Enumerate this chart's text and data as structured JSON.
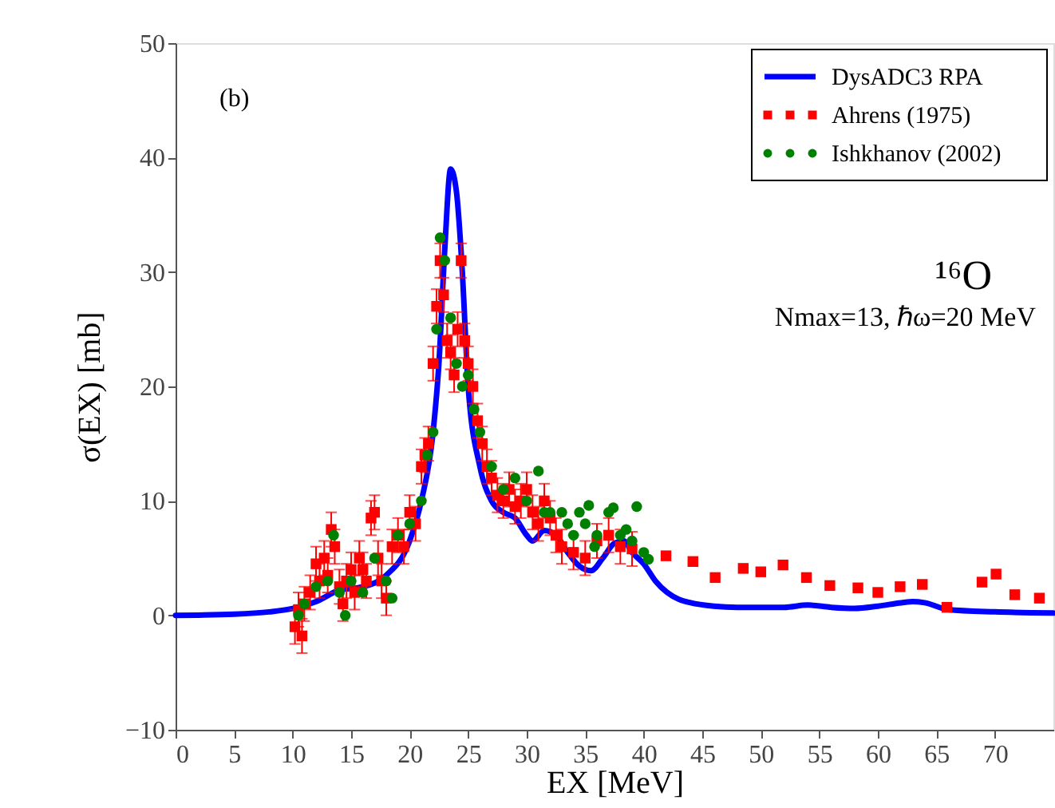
{
  "chart_data": {
    "type": "scatter",
    "xlabel": "EX [MeV]",
    "ylabel": "σ(EX) [mb]",
    "annotations": [
      "(b)",
      "¹⁶O",
      "Nmax=13, ℏω=20 MeV"
    ],
    "xlim": [
      0,
      75
    ],
    "xticks": [
      0,
      5,
      10,
      15,
      20,
      25,
      30,
      35,
      40,
      45,
      50,
      55,
      60,
      65,
      70
    ],
    "ylim": [
      -10,
      50
    ],
    "yticks": [
      -10,
      0,
      10,
      20,
      30,
      40,
      50
    ],
    "grid": false,
    "legend": "top right",
    "series": [
      {
        "name": "DysADC3 RPA",
        "type": "line",
        "color": "#0000ff",
        "line_style": "solid",
        "marker": "none",
        "x": [
          0,
          5,
          8,
          10,
          12,
          14,
          16,
          18,
          20,
          21,
          22,
          22.5,
          23,
          23.5,
          24,
          24.5,
          25,
          26,
          27,
          28,
          29,
          30,
          30.5,
          31.5,
          32.5,
          33.5,
          34.5,
          35.5,
          36.5,
          37.5,
          38.3,
          39,
          40,
          41,
          42,
          43,
          44,
          46,
          48,
          50,
          52,
          54,
          56,
          58,
          60,
          62,
          63,
          64,
          66,
          70,
          75
        ],
        "values": [
          0,
          0.1,
          0.3,
          0.6,
          1.2,
          2.2,
          2.5,
          3.5,
          6.5,
          10,
          16,
          22,
          32,
          39,
          37,
          30,
          20,
          13,
          10,
          9,
          8.5,
          7,
          6.5,
          7.4,
          7,
          5.5,
          4.3,
          3.9,
          5,
          6.3,
          6.5,
          5.5,
          4.5,
          3,
          2,
          1.4,
          1.1,
          0.8,
          0.7,
          0.7,
          0.7,
          0.9,
          0.7,
          0.6,
          0.8,
          1.1,
          1.2,
          1.1,
          0.5,
          0.3,
          0.2
        ]
      },
      {
        "name": "Ahrens (1975)",
        "color": "#ff0000",
        "marker": "square",
        "x": [
          10.2,
          10.5,
          10.8,
          11,
          11.5,
          12,
          12.3,
          12.7,
          13,
          13.3,
          13.6,
          14,
          14.3,
          14.6,
          15,
          15.3,
          15.7,
          16,
          16.3,
          16.7,
          17,
          17.3,
          17.6,
          18,
          18.5,
          19,
          19.5,
          20,
          20.5,
          21,
          21.3,
          21.6,
          22,
          22.3,
          22.6,
          22.9,
          23.2,
          23.5,
          23.8,
          24.1,
          24.4,
          24.7,
          25,
          25.4,
          25.8,
          26.2,
          26.6,
          27,
          27.5,
          28,
          28.5,
          29,
          29.5,
          30,
          30.5,
          31,
          31.5,
          32,
          32.5,
          33,
          34,
          35,
          36,
          37,
          38,
          39,
          41.9,
          44.2,
          46.1,
          48.5,
          50,
          51.9,
          53.9,
          55.9,
          58.3,
          60,
          61.9,
          63.8,
          65.9,
          68.9,
          70.1,
          71.7,
          73.8
        ],
        "values": [
          -1,
          0.5,
          -1.8,
          1,
          2,
          4.5,
          3,
          5,
          3.5,
          7.5,
          6,
          2.5,
          1,
          3,
          4,
          2,
          5,
          4,
          3,
          8.5,
          9,
          5,
          3,
          1.5,
          6,
          7,
          6,
          9,
          8,
          13,
          14,
          15,
          22,
          27,
          31,
          28,
          24,
          23,
          21,
          25,
          31,
          24,
          22,
          20,
          17,
          15,
          13,
          12,
          10.5,
          10,
          11,
          9.5,
          10,
          11,
          9,
          8,
          10,
          8.5,
          7,
          6,
          5.5,
          5,
          6.5,
          7,
          6,
          5.8,
          5.2,
          4.7,
          3.3,
          4.1,
          3.8,
          4.4,
          3.3,
          2.6,
          2.4,
          2,
          2.5,
          2.7,
          0.7,
          2.9,
          3.6,
          1.8,
          1.5
        ],
        "errors": [
          1.5,
          1.5,
          1.5,
          1.5,
          1.5,
          1.5,
          1.5,
          1.5,
          1.5,
          1.5,
          1.5,
          1.5,
          1.5,
          1.5,
          1.5,
          1.5,
          1.5,
          1.5,
          1.5,
          1.5,
          1.5,
          1.5,
          1.5,
          1.5,
          1.5,
          1.5,
          1.5,
          1.5,
          1.5,
          1.5,
          1.5,
          1.5,
          1.5,
          1.5,
          1.5,
          1.5,
          1.5,
          1.5,
          1.5,
          1.5,
          1.5,
          1.5,
          1.5,
          1.5,
          1.5,
          1.5,
          1.5,
          1.5,
          1.5,
          1.5,
          1.5,
          1.5,
          1.5,
          1.5,
          1.5,
          1.5,
          1.5,
          1.5,
          1.5,
          1.5,
          1.5,
          1.5,
          1.5,
          1.5,
          1.5,
          1.5,
          null,
          null,
          null,
          null,
          null,
          null,
          null,
          null,
          null,
          null,
          null,
          null,
          null,
          null,
          null,
          null,
          null
        ]
      },
      {
        "name": "Ishkhanov (2002)",
        "color": "#008000",
        "marker": "circle",
        "x": [
          10.5,
          11,
          12,
          13,
          13.5,
          14,
          14.5,
          15,
          16,
          17,
          18,
          18.5,
          19,
          20,
          21,
          21.5,
          22,
          22.3,
          22.6,
          23,
          23.5,
          24,
          24.5,
          25,
          25.5,
          26,
          27,
          28,
          29,
          30,
          31,
          31.5,
          32,
          33,
          33.5,
          34,
          34.5,
          35,
          35.3,
          35.8,
          36,
          37,
          37.4,
          38,
          38.5,
          39,
          39.4,
          40,
          40.4
        ],
        "values": [
          0,
          1,
          2.5,
          3,
          7,
          2,
          0,
          3,
          2,
          5,
          3,
          1.5,
          7,
          8,
          10,
          14,
          16,
          25,
          33,
          31,
          26,
          22,
          20,
          21,
          18,
          16,
          13,
          11,
          12,
          10,
          12.6,
          9,
          9,
          9,
          8,
          7,
          9,
          8,
          9.6,
          6,
          7,
          9,
          9.4,
          7,
          7.5,
          6.5,
          9.5,
          5.5,
          4.9
        ]
      }
    ]
  }
}
